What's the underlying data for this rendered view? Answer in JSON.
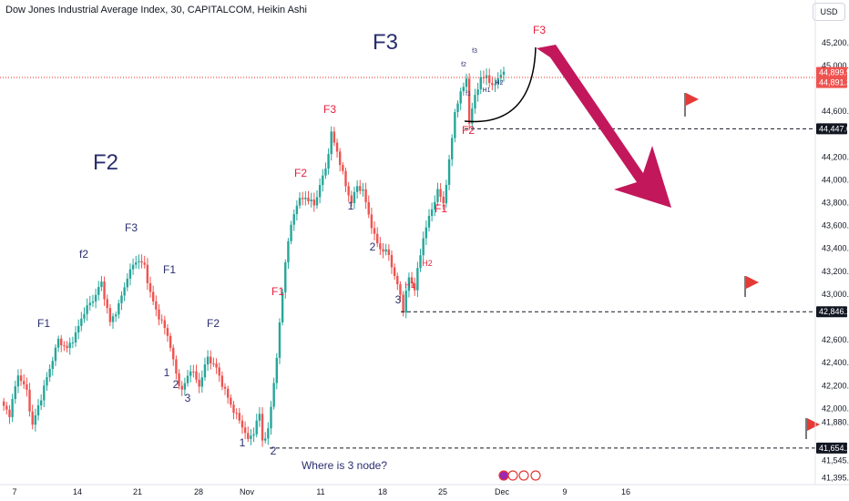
{
  "header": {
    "title": "Dow Jones Industrial Average Index, 30, CAPITALCOM, Heikin Ashi",
    "currency_label": "USD"
  },
  "colors": {
    "up": "#26a69a",
    "down": "#ef5350",
    "label_dark": "#2a2e6e",
    "label_red": "#e91e3c",
    "arrow": "#c2185b",
    "flag": "#e53935"
  },
  "y_axis": {
    "ticks": [
      "45,200.0",
      "45,000.0",
      "44,600.0",
      "44,200.0",
      "44,000.0",
      "43,800.0",
      "43,600.0",
      "43,400.0",
      "43,200.0",
      "43,000.0",
      "42,600.0",
      "42,400.0",
      "42,200.0",
      "42,000.0",
      "41,880.0",
      "41,545.0",
      "41,395.0"
    ],
    "tick_values": [
      45200,
      45000,
      44600,
      44200,
      44000,
      43800,
      43600,
      43400,
      43200,
      43000,
      42600,
      42400,
      42200,
      42000,
      41880,
      41545,
      41395
    ],
    "range": [
      41350,
      45430
    ]
  },
  "x_axis": {
    "labels": [
      "7",
      "14",
      "21",
      "28",
      "Nov",
      "11",
      "18",
      "25",
      "Dec",
      "9",
      "16"
    ]
  },
  "price_tags": [
    {
      "text": "44,899.9",
      "value": 44899.9,
      "color": "#ef5350"
    },
    {
      "text": "44,891.3",
      "value": 44891.3,
      "color": "#ef5350"
    },
    {
      "text": "44,447.0",
      "value": 44447.0,
      "color": "#131722"
    },
    {
      "text": "42,846.2",
      "value": 42846.2,
      "color": "#131722"
    },
    {
      "text": "41,654.2",
      "value": 41654.2,
      "color": "#131722"
    }
  ],
  "annotations": {
    "big_f3": "F3",
    "big_f2": "F2",
    "left_labels": [
      "F1",
      "f2",
      "F3",
      "F1",
      "F2",
      "1",
      "2",
      "3",
      "1",
      "2"
    ],
    "mid_labels": [
      "F1",
      "F2",
      "F3",
      "1",
      "2",
      "3",
      "H1",
      "H2",
      "F1",
      "F2"
    ],
    "top_labels": [
      "f2",
      "f3",
      "f1",
      "H1",
      "H2"
    ],
    "f3_target": "F3",
    "question": "Where is 3 node?"
  },
  "chart_data": {
    "type": "candlestick",
    "style": "Heikin Ashi",
    "title": "Dow Jones Industrial Average Index, 30, CAPITALCOM, Heikin Ashi",
    "ylim": [
      41350,
      45430
    ],
    "grid": false,
    "price_path": [
      [
        0,
        42050
      ],
      [
        3,
        41950
      ],
      [
        6,
        42300
      ],
      [
        9,
        42150
      ],
      [
        11,
        41850
      ],
      [
        14,
        42100
      ],
      [
        17,
        42350
      ],
      [
        20,
        42600
      ],
      [
        23,
        42520
      ],
      [
        26,
        42650
      ],
      [
        29,
        42850
      ],
      [
        32,
        42950
      ],
      [
        35,
        43100
      ],
      [
        38,
        42750
      ],
      [
        41,
        42900
      ],
      [
        44,
        43150
      ],
      [
        47,
        43300
      ],
      [
        50,
        43250
      ],
      [
        52,
        43000
      ],
      [
        55,
        42800
      ],
      [
        58,
        42650
      ],
      [
        61,
        42300
      ],
      [
        63,
        42150
      ],
      [
        66,
        42350
      ],
      [
        69,
        42200
      ],
      [
        72,
        42450
      ],
      [
        75,
        42350
      ],
      [
        78,
        42150
      ],
      [
        81,
        41980
      ],
      [
        84,
        41850
      ],
      [
        86,
        41720
      ],
      [
        88,
        41800
      ],
      [
        90,
        41950
      ],
      [
        91,
        41720
      ],
      [
        93,
        41800
      ],
      [
        96,
        42450
      ],
      [
        99,
        43300
      ],
      [
        101,
        43600
      ],
      [
        103,
        43800
      ],
      [
        106,
        43850
      ],
      [
        109,
        43780
      ],
      [
        111,
        43950
      ],
      [
        113,
        44100
      ],
      [
        115,
        44400
      ],
      [
        117,
        44250
      ],
      [
        120,
        43950
      ],
      [
        122,
        43800
      ],
      [
        124,
        43950
      ],
      [
        126,
        43900
      ],
      [
        128,
        43700
      ],
      [
        130,
        43500
      ],
      [
        132,
        43400
      ],
      [
        135,
        43350
      ],
      [
        137,
        43150
      ],
      [
        139,
        43000
      ],
      [
        140,
        42860
      ],
      [
        142,
        43150
      ],
      [
        144,
        43050
      ],
      [
        147,
        43500
      ],
      [
        150,
        43750
      ],
      [
        152,
        43900
      ],
      [
        154,
        43800
      ],
      [
        156,
        44150
      ],
      [
        158,
        44600
      ],
      [
        160,
        44750
      ],
      [
        162,
        44900
      ],
      [
        163,
        44480
      ],
      [
        165,
        44750
      ],
      [
        167,
        44870
      ],
      [
        169,
        44920
      ],
      [
        171,
        44800
      ],
      [
        173,
        44900
      ],
      [
        175,
        44930
      ]
    ],
    "levels": [
      44447.0,
      42846.2,
      41654.2
    ]
  }
}
